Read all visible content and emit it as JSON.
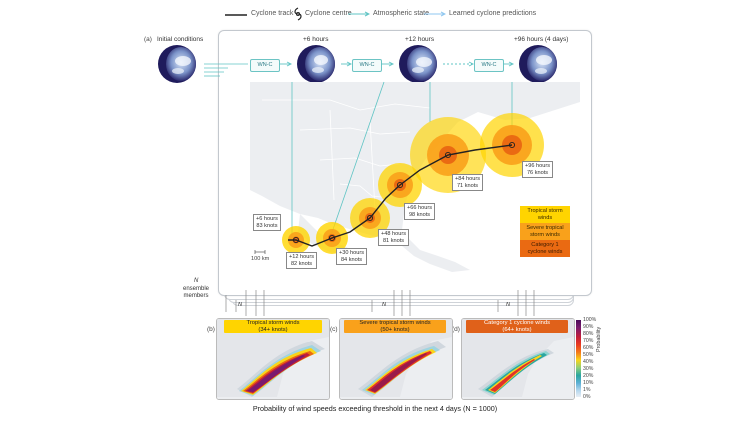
{
  "legend": {
    "cyclone_track": "Cyclone track",
    "cyclone_centre": "Cyclone centre",
    "atmospheric_state": "Atmospheric state",
    "learned_predictions": "Learned cyclone predictions"
  },
  "panel_a": {
    "label": "(a)",
    "initial_conditions": "Initial conditions",
    "stages": [
      "+6 hours",
      "+12 hours",
      "+96 hours (4 days)"
    ],
    "model_box": "WN-C",
    "ensemble_text": "ensemble\nmembers",
    "ensemble_n": "N",
    "n_label": "N",
    "scale": "100 km",
    "annotations": [
      "+6 hours\n83 knots",
      "+12 hours\n82 knots",
      "+30 hours\n84 knots",
      "+48 hours\n81 knots",
      "+66 hours\n98 knots",
      "+84 hours\n71 knots",
      "+96 hours\n76 knots"
    ],
    "key": [
      "Tropical storm\nwinds",
      "Severe tropical\nstorm winds",
      "Category 1\ncyclone winds"
    ],
    "key_colors": [
      "#ffd400",
      "#f9a11b",
      "#ea6a12"
    ]
  },
  "panels_bcd": [
    {
      "label": "(b)",
      "title": "Tropical storm winds\n(34+ knots)",
      "color": "#ffd400"
    },
    {
      "label": "(c)",
      "title": "Severe tropical storm winds\n(50+ knots)",
      "color": "#f9a11b"
    },
    {
      "label": "(d)",
      "title": "Category 1 cyclone winds\n(64+ knots)",
      "color": "#e0611a"
    }
  ],
  "colorbar": {
    "ticks": [
      "100%",
      "90%",
      "80%",
      "70%",
      "60%",
      "50%",
      "40%",
      "30%",
      "20%",
      "10%",
      "1%",
      "0%"
    ],
    "title": "Probability"
  },
  "caption": "Probability of wind speeds exceeding threshold in the next 4 days (N = 1000)"
}
